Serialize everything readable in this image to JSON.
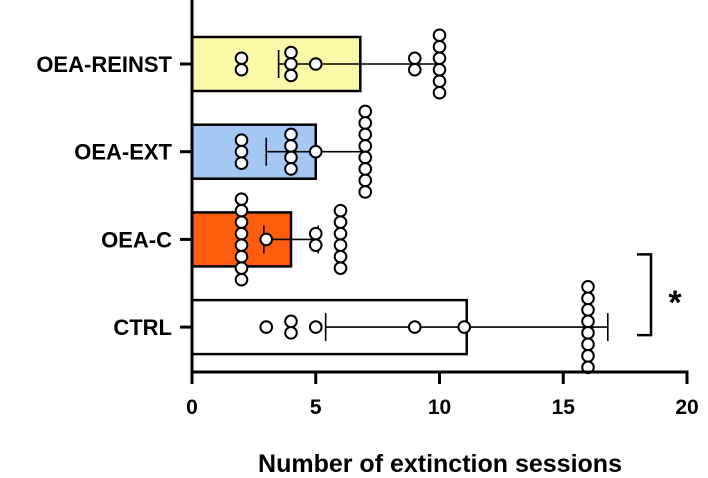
{
  "chart_data": {
    "type": "bar",
    "orientation": "horizontal",
    "categories": [
      "OEA-REINST",
      "OEA-EXT",
      "OEA-C",
      "CTRL"
    ],
    "xlabel": "Number of extinction sessions",
    "ylabel": "",
    "xlim": [
      0,
      20
    ],
    "xticks": [
      0,
      5,
      10,
      15,
      20
    ],
    "grid": false,
    "series": [
      {
        "values": [
          6.8,
          5.0,
          4.0,
          11.1
        ],
        "error": [
          3.3,
          2.0,
          1.1,
          5.7
        ],
        "colors": [
          "#fbf8a8",
          "#a4c8f4",
          "#fe5d0e",
          "#ffffff"
        ],
        "points": [
          [
            2,
            2,
            4,
            4,
            4,
            9,
            9,
            10,
            10,
            10,
            10,
            10,
            10,
            5
          ],
          [
            2,
            2,
            2,
            4,
            4,
            4,
            4,
            7,
            7,
            7,
            7,
            7,
            7,
            7,
            7,
            5
          ],
          [
            2,
            2,
            2,
            2,
            2,
            2,
            2,
            2,
            5,
            5,
            6,
            6,
            6,
            6,
            6,
            6,
            3
          ],
          [
            3,
            4,
            4,
            5,
            9,
            16,
            16,
            16,
            16,
            16,
            16,
            16,
            16,
            11
          ]
        ]
      }
    ],
    "annotations": [
      {
        "text": "*",
        "between": [
          "OEA-C",
          "CTRL"
        ]
      }
    ]
  }
}
